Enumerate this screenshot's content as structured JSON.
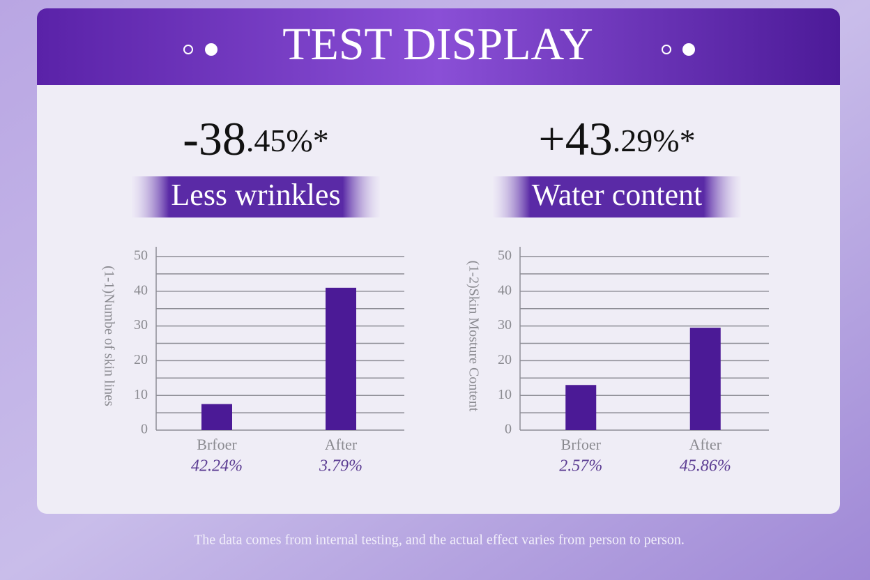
{
  "header": {
    "title": "TEST DISPLAY"
  },
  "chart_data": [
    {
      "type": "bar",
      "headline": "-38.45%*",
      "title": "Less wrinkles",
      "y_label": "(1-1)Numbe of skin lines",
      "categories": [
        "Brfoer",
        "After"
      ],
      "category_notes": [
        "42.24%",
        "3.79%"
      ],
      "values": [
        7.5,
        41
      ],
      "color": "#4b1a96",
      "ylim": [
        0,
        50
      ],
      "yticks": [
        0,
        10,
        20,
        30,
        40,
        50
      ],
      "yminor": [
        5,
        15,
        25,
        35,
        45
      ],
      "grid": true
    },
    {
      "type": "bar",
      "headline": "+43.29%*",
      "title": "Water content",
      "y_label": "(1-2)Skin Mosture Content",
      "categories": [
        "Brfoer",
        "After"
      ],
      "category_notes": [
        "2.57%",
        "45.86%"
      ],
      "values": [
        13,
        29.5
      ],
      "color": "#4b1a96",
      "ylim": [
        0,
        50
      ],
      "yticks": [
        0,
        10,
        20,
        30,
        40,
        50
      ],
      "yminor": [
        5,
        15,
        25,
        35,
        45
      ],
      "grid": true
    }
  ],
  "footer": "The data comes from internal testing, and the actual effect varies from person to person."
}
